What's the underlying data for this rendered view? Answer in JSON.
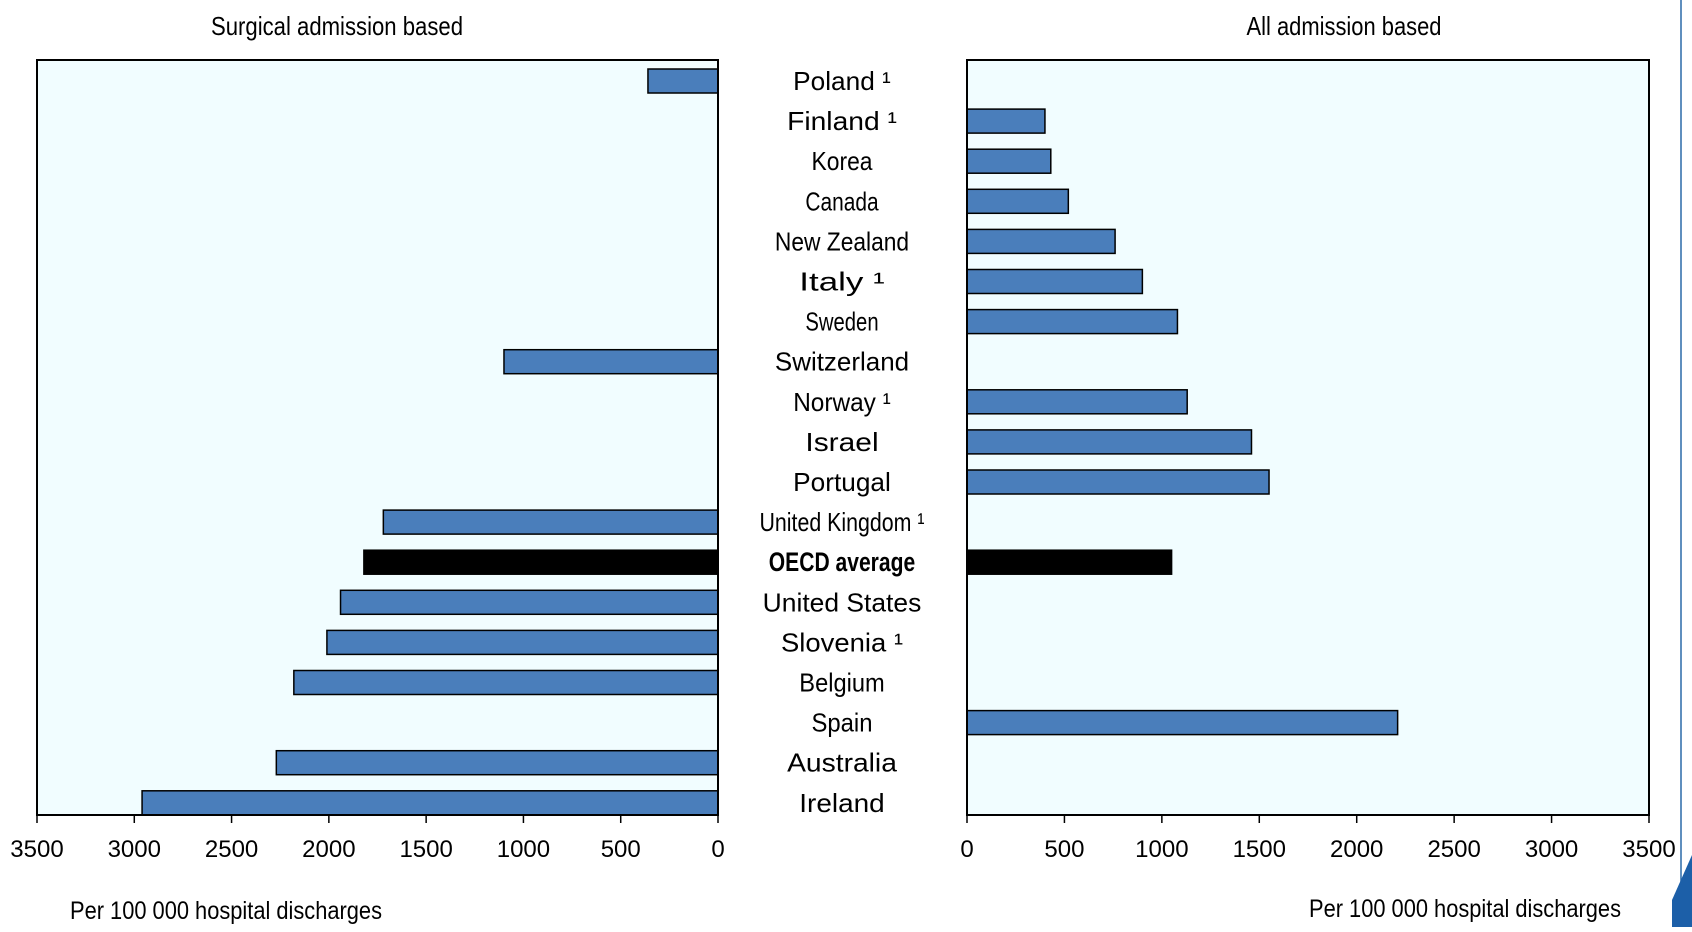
{
  "chart_data": [
    {
      "type": "bar",
      "orientation": "horizontal",
      "direction": "reversed",
      "title": "Surgical admission based",
      "xlabel": "Per 100 000 hospital discharges",
      "xlim": [
        0,
        3500
      ],
      "ticks": [
        3500,
        3000,
        2500,
        2000,
        1500,
        1000,
        500,
        0
      ],
      "categories": [
        "Poland ¹",
        "Finland ¹",
        "Korea",
        "Canada",
        "New Zealand",
        "Italy ¹",
        "Sweden",
        "Switzerland",
        "Norway ¹",
        "Israel",
        "Portugal",
        "United Kingdom ¹",
        "OECD average",
        "United States",
        "Slovenia ¹",
        "Belgium",
        "Spain",
        "Australia",
        "Ireland"
      ],
      "values": [
        360,
        null,
        null,
        null,
        null,
        null,
        null,
        1100,
        null,
        null,
        null,
        1720,
        1820,
        1940,
        2010,
        2180,
        null,
        2270,
        2960
      ],
      "colors": {
        "bar": "#4a7ebb",
        "highlight": "#000000",
        "plot_bg": "#f1fdff"
      },
      "highlight_category": "OECD average"
    },
    {
      "type": "bar",
      "orientation": "horizontal",
      "title": "All admission based",
      "xlabel": "Per 100 000 hospital discharges",
      "xlim": [
        0,
        3500
      ],
      "ticks": [
        0,
        500,
        1000,
        1500,
        2000,
        2500,
        3000,
        3500
      ],
      "categories": [
        "Poland ¹",
        "Finland ¹",
        "Korea",
        "Canada",
        "New Zealand",
        "Italy ¹",
        "Sweden",
        "Switzerland",
        "Norway ¹",
        "Israel",
        "Portugal",
        "United Kingdom ¹",
        "OECD average",
        "United States",
        "Slovenia ¹",
        "Belgium",
        "Spain",
        "Australia",
        "Ireland"
      ],
      "values": [
        null,
        400,
        430,
        520,
        760,
        900,
        1080,
        null,
        1130,
        1460,
        1550,
        null,
        1050,
        null,
        null,
        null,
        2210,
        null,
        null
      ],
      "colors": {
        "bar": "#4a7ebb",
        "highlight": "#000000",
        "plot_bg": "#f1fdff"
      },
      "highlight_category": "OECD average"
    }
  ]
}
